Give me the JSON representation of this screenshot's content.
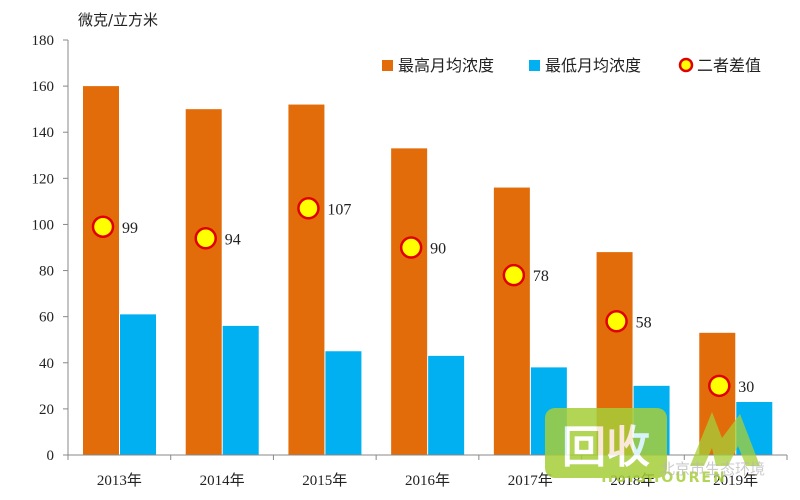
{
  "chart_data": {
    "type": "bar",
    "unit_label": "微克/立方米",
    "categories": [
      "2013年",
      "2014年",
      "2015年",
      "2016年",
      "2017年",
      "2018年",
      "2019年"
    ],
    "series": [
      {
        "name": "最高月均浓度",
        "values": [
          160,
          150,
          152,
          133,
          116,
          88,
          53
        ],
        "color": "#e36c0a"
      },
      {
        "name": "最低月均浓度",
        "values": [
          61,
          56,
          45,
          43,
          38,
          30,
          23
        ],
        "color": "#00b0f0"
      }
    ],
    "difference": {
      "name": "二者差值",
      "values": [
        99,
        94,
        107,
        90,
        78,
        58,
        30
      ],
      "fill": "#ffff00",
      "stroke": "#e00000"
    },
    "ylim": [
      0,
      180
    ],
    "yticks": [
      0,
      20,
      40,
      60,
      80,
      100,
      120,
      140,
      160,
      180
    ],
    "grid": false,
    "legend_position": "top-right"
  },
  "watermark": {
    "logo_text": "回收",
    "sub_text": "HUISHOUREN",
    "side_text": "北京市生态环境",
    "color": "#a6ce39"
  }
}
